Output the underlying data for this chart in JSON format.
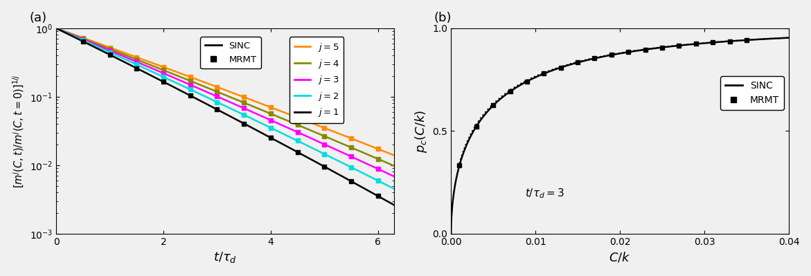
{
  "panel_a": {
    "title": "(a)",
    "xlabel": "$t / \\tau_d$",
    "ylabel": "$[m^j(C,t)/m^j(C,t=0)]^{1/j}$",
    "xlim": [
      0,
      6.3
    ],
    "xticks": [
      0,
      2,
      4,
      6
    ],
    "SINC_label": "SINC",
    "MRMT_label": "MRMT",
    "colors_j": {
      "1": "#000000",
      "2": "#00DDDD",
      "3": "#FF00FF",
      "4": "#888800",
      "5": "#FF8C00"
    },
    "slopes": {
      "1": 0.88,
      "2": 0.8,
      "3": 0.74,
      "4": 0.69,
      "5": 0.64
    },
    "curve2": {
      "1": 0.01,
      "2": 0.009,
      "3": 0.008,
      "4": 0.007,
      "5": 0.006
    }
  },
  "panel_b": {
    "title": "(b)",
    "xlabel": "$C/k$",
    "ylabel": "$p_c(C/k)$",
    "xlim": [
      0,
      0.04
    ],
    "ylim": [
      0,
      1.0
    ],
    "xticks": [
      0,
      0.01,
      0.02,
      0.03,
      0.04
    ],
    "yticks": [
      0,
      0.5,
      1.0
    ],
    "annotation": "$t/\\tau_d = 3$",
    "SINC_label": "SINC",
    "MRMT_label": "MRMT",
    "sinc_scale": 0.0052,
    "sinc_shape": 0.55,
    "mrmt_scale": 0.005,
    "mrmt_shape": 0.54
  }
}
